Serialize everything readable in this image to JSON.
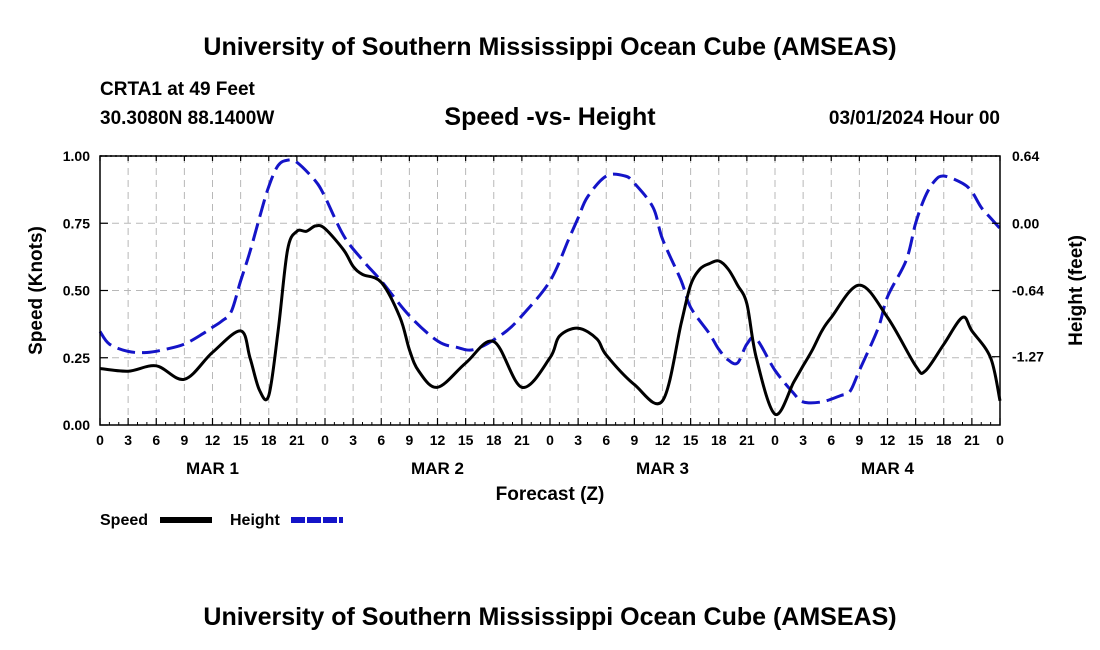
{
  "header": {
    "title": "University of Southern Mississippi Ocean Cube (AMSEAS)",
    "station": "CRTA1 at 49 Feet",
    "location": "30.3080N  88.1400W",
    "chart_subtitle": "Speed -vs- Height",
    "datetime": "03/01/2024 Hour 00"
  },
  "footer": {
    "title": "University of Southern Mississippi Ocean Cube (AMSEAS)"
  },
  "legend": [
    {
      "label": "Speed",
      "color": "#000000",
      "style": "solid"
    },
    {
      "label": "Height",
      "color": "#1414c8",
      "style": "dashed"
    }
  ],
  "chart_data": {
    "type": "line",
    "title": "Speed -vs- Height",
    "xlabel": "Forecast (Z)",
    "ylabel": "Speed (Knots)",
    "y2label": "Height (feet)",
    "xlim": [
      0,
      96
    ],
    "ylim": [
      0,
      1.0
    ],
    "y2lim": [
      -1.92,
      0.64
    ],
    "x_tick_values": [
      0,
      3,
      6,
      9,
      12,
      15,
      18,
      21,
      24,
      27,
      30,
      33,
      36,
      39,
      42,
      45,
      48,
      51,
      54,
      57,
      60,
      63,
      66,
      69,
      72,
      75,
      78,
      81,
      84,
      87,
      90,
      93,
      96
    ],
    "x_tick_labels": [
      "0",
      "3",
      "6",
      "9",
      "12",
      "15",
      "18",
      "21",
      "0",
      "3",
      "6",
      "9",
      "12",
      "15",
      "18",
      "21",
      "0",
      "3",
      "6",
      "9",
      "12",
      "15",
      "18",
      "21",
      "0",
      "3",
      "6",
      "9",
      "12",
      "15",
      "18",
      "21",
      "0"
    ],
    "y_ticks": [
      0.0,
      0.25,
      0.5,
      0.75,
      1.0
    ],
    "y_tick_labels": [
      "0.00",
      "0.25",
      "0.50",
      "0.75",
      "1.00"
    ],
    "y2_ticks": [
      -1.27,
      -0.64,
      0.0,
      0.64
    ],
    "y2_tick_labels": [
      "-1.27",
      "-0.64",
      "0.00",
      "0.64"
    ],
    "day_labels": [
      {
        "label": "MAR 1",
        "x": 12
      },
      {
        "label": "MAR 2",
        "x": 36
      },
      {
        "label": "MAR 3",
        "x": 60
      },
      {
        "label": "MAR 4",
        "x": 84
      }
    ],
    "grid": true,
    "series": [
      {
        "name": "Speed",
        "axis": "left",
        "color": "#000000",
        "dash": "none",
        "x": [
          0,
          3,
          6,
          9,
          12,
          15,
          16,
          17,
          18,
          19,
          20,
          21,
          22,
          23,
          24,
          26,
          27,
          28,
          30,
          32,
          33,
          34,
          36,
          39,
          42,
          45,
          48,
          49,
          51,
          53,
          54,
          57,
          60,
          62,
          63,
          64,
          65,
          66,
          67,
          68,
          69,
          70,
          72,
          74,
          75,
          76,
          77,
          78,
          81,
          84,
          87,
          88,
          90,
          92,
          93,
          95,
          96
        ],
        "y": [
          0.21,
          0.2,
          0.22,
          0.17,
          0.27,
          0.35,
          0.25,
          0.13,
          0.11,
          0.35,
          0.65,
          0.72,
          0.72,
          0.74,
          0.73,
          0.65,
          0.59,
          0.56,
          0.53,
          0.4,
          0.28,
          0.2,
          0.14,
          0.23,
          0.31,
          0.14,
          0.25,
          0.33,
          0.36,
          0.32,
          0.26,
          0.15,
          0.09,
          0.38,
          0.52,
          0.58,
          0.6,
          0.61,
          0.58,
          0.52,
          0.45,
          0.25,
          0.04,
          0.16,
          0.22,
          0.28,
          0.35,
          0.4,
          0.52,
          0.4,
          0.22,
          0.2,
          0.3,
          0.4,
          0.35,
          0.25,
          0.09
        ]
      },
      {
        "name": "Height",
        "axis": "right",
        "color": "#1414c8",
        "dash": "18,7",
        "x": [
          0,
          1,
          3,
          5,
          7,
          9,
          11,
          12,
          13,
          14,
          15,
          16,
          17,
          18,
          19,
          20,
          21,
          23,
          24,
          26,
          28,
          30,
          33,
          36,
          38,
          40,
          43,
          45,
          48,
          50,
          51,
          52,
          54,
          56,
          57,
          59,
          60,
          62,
          63,
          65,
          66,
          67,
          68,
          69,
          70,
          72,
          74,
          75,
          77,
          79,
          80,
          81,
          83,
          84,
          86,
          87,
          88,
          89,
          90,
          92,
          93,
          94,
          95,
          96
        ],
        "y": [
          -1.03,
          -1.15,
          -1.22,
          -1.23,
          -1.2,
          -1.15,
          -1.05,
          -0.99,
          -0.93,
          -0.84,
          -0.55,
          -0.27,
          0.05,
          0.35,
          0.55,
          0.6,
          0.58,
          0.4,
          0.25,
          -0.12,
          -0.35,
          -0.55,
          -0.88,
          -1.12,
          -1.18,
          -1.2,
          -1.05,
          -0.88,
          -0.55,
          -0.15,
          0.05,
          0.25,
          0.45,
          0.45,
          0.38,
          0.15,
          -0.15,
          -0.55,
          -0.8,
          -1.05,
          -1.2,
          -1.3,
          -1.33,
          -1.15,
          -1.1,
          -1.4,
          -1.62,
          -1.7,
          -1.7,
          -1.64,
          -1.6,
          -1.4,
          -1.0,
          -0.7,
          -0.35,
          0.0,
          0.25,
          0.4,
          0.45,
          0.38,
          0.3,
          0.15,
          0.05,
          -0.05
        ]
      }
    ]
  }
}
